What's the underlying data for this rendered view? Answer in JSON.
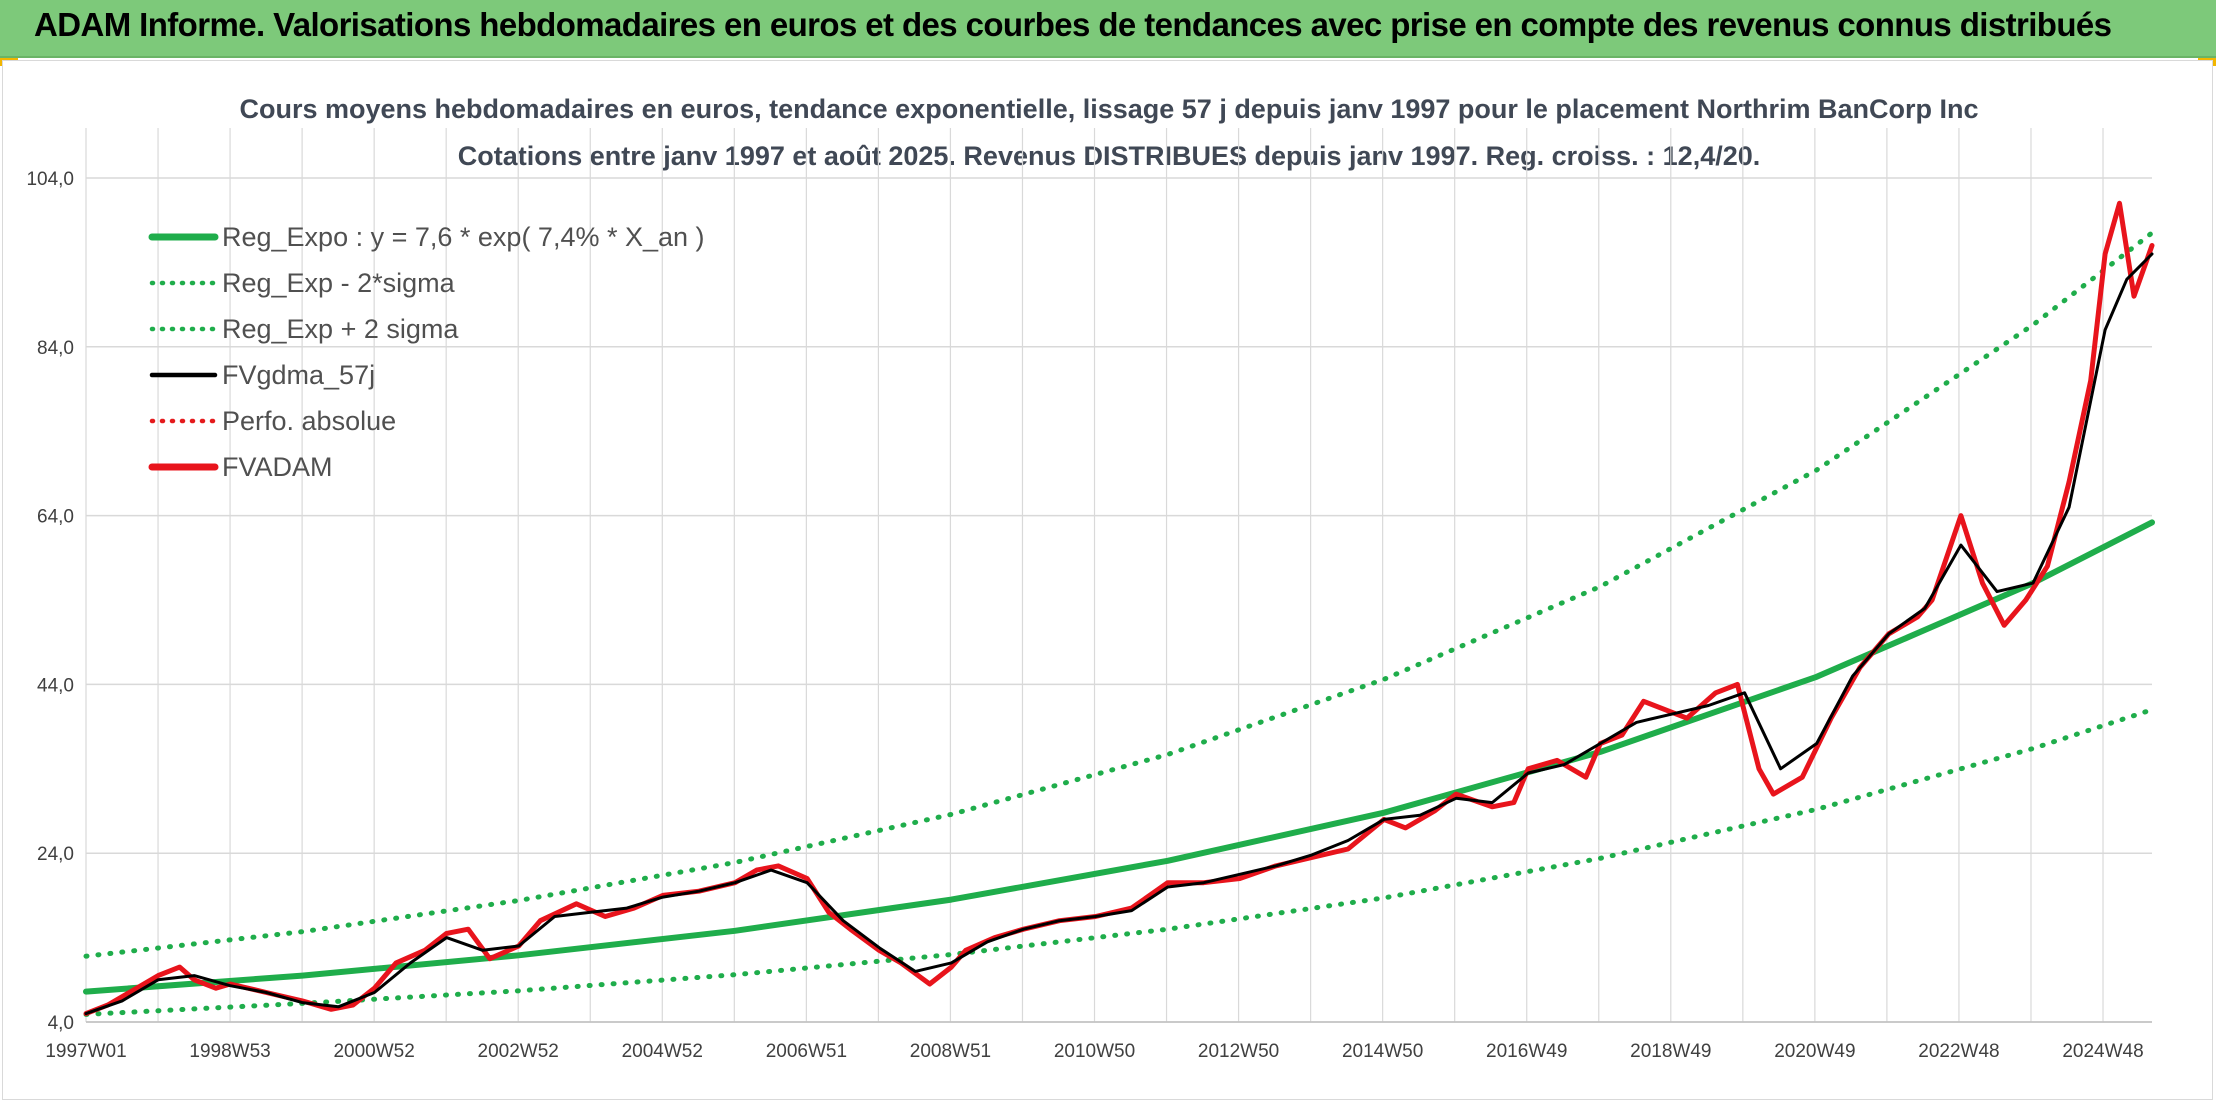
{
  "header": {
    "banner_title": "ADAM Informe. Valorisations hebdomadaires en euros et des courbes de tendances avec prise en compte des revenus connus distribués"
  },
  "colors": {
    "banner_bg": "#7dc97a",
    "reg_expo": "#1fad4b",
    "sigma_lines": "#1fad4b",
    "fvgdma": "#000000",
    "perfo": "#e41a1c",
    "fvadam": "#e8141c",
    "grid": "#d9d9d9"
  },
  "chart_data": {
    "type": "line",
    "title": "Cours moyens hebdomadaires en euros, tendance exponentielle, lissage 57 j depuis janv 1997 pour le placement Northrim BanCorp Inc",
    "subtitle": "Cotations entre janv 1997 et août 2025. Revenus DISTRIBUES depuis janv 1997. Reg. croiss. : 12,4/20.",
    "xlabel": "",
    "ylabel": "",
    "x_ticks": [
      "1997W01",
      "1998W53",
      "2000W52",
      "2002W52",
      "2004W52",
      "2006W51",
      "2008W51",
      "2010W50",
      "2012W50",
      "2014W50",
      "2016W49",
      "2018W49",
      "2020W49",
      "2022W48",
      "2024W48"
    ],
    "x_range": [
      1997.0,
      2025.65
    ],
    "ylim": [
      4.0,
      104.0
    ],
    "y_ticks": [
      "4,0",
      "24,0",
      "44,0",
      "64,0",
      "84,0",
      "104,0"
    ],
    "grid": true,
    "legend_position": "top-left",
    "legend": [
      {
        "label": "Reg_Expo : y = 7,6 * exp( 7,4% *  X_an )",
        "style": "solid-thick",
        "color": "#1fad4b"
      },
      {
        "label": "Reg_Exp - 2*sigma",
        "style": "dotted",
        "color": "#1fad4b"
      },
      {
        "label": "Reg_Exp + 2 sigma",
        "style": "dotted",
        "color": "#1fad4b"
      },
      {
        "label": "FVgdma_57j",
        "style": "solid",
        "color": "#000000"
      },
      {
        "label": "Perfo. absolue",
        "style": "dotted",
        "color": "#e41a1c"
      },
      {
        "label": "FVADAM",
        "style": "solid-thick",
        "color": "#e8141c"
      }
    ],
    "series": [
      {
        "name": "Reg_Expo : y = 7,6 * exp( 7,4% *  X_an )",
        "x": [
          1997.0,
          2000.0,
          2003.0,
          2006.0,
          2009.0,
          2012.0,
          2015.0,
          2018.0,
          2021.0,
          2024.0,
          2025.65
        ],
        "y": [
          7.6,
          9.5,
          11.9,
          14.8,
          18.5,
          23.1,
          28.8,
          36.0,
          44.9,
          56.0,
          63.2
        ]
      },
      {
        "name": "Reg_Exp - 2*sigma",
        "x": [
          1997.0,
          2000.0,
          2003.0,
          2006.0,
          2009.0,
          2012.0,
          2015.0,
          2018.0,
          2021.0,
          2024.0,
          2025.65
        ],
        "y": [
          4.9,
          6.2,
          7.7,
          9.6,
          12.0,
          15.0,
          18.7,
          23.4,
          29.2,
          36.4,
          41.0
        ]
      },
      {
        "name": "Reg_Exp + 2 sigma",
        "x": [
          1997.0,
          2000.0,
          2003.0,
          2006.0,
          2009.0,
          2012.0,
          2015.0,
          2018.0,
          2021.0,
          2024.0,
          2025.65
        ],
        "y": [
          11.8,
          14.7,
          18.4,
          22.9,
          28.6,
          35.7,
          44.6,
          55.6,
          69.4,
          86.6,
          97.5
        ]
      },
      {
        "name": "FVADAM",
        "x": [
          1997.0,
          1997.3,
          1997.6,
          1998.0,
          1998.3,
          1998.5,
          1998.8,
          1999.0,
          1999.5,
          2000.0,
          2000.4,
          2000.7,
          2001.0,
          2001.3,
          2001.7,
          2002.0,
          2002.3,
          2002.6,
          2003.0,
          2003.3,
          2003.8,
          2004.2,
          2004.6,
          2005.0,
          2005.5,
          2006.0,
          2006.3,
          2006.6,
          2007.0,
          2007.3,
          2007.6,
          2008.0,
          2008.3,
          2008.7,
          2009.0,
          2009.2,
          2009.6,
          2010.0,
          2010.5,
          2011.0,
          2011.5,
          2012.0,
          2012.5,
          2013.0,
          2013.5,
          2014.0,
          2014.5,
          2015.0,
          2015.3,
          2015.7,
          2016.0,
          2016.5,
          2016.8,
          2017.0,
          2017.4,
          2017.8,
          2018.0,
          2018.3,
          2018.6,
          2018.9,
          2019.2,
          2019.6,
          2019.9,
          2020.2,
          2020.4,
          2020.8,
          2021.2,
          2021.6,
          2022.0,
          2022.4,
          2022.6,
          2022.8,
          2023.0,
          2023.3,
          2023.6,
          2023.9,
          2024.2,
          2024.5,
          2024.8,
          2025.0,
          2025.2,
          2025.4,
          2025.65
        ],
        "y": [
          5.0,
          6.0,
          7.5,
          9.5,
          10.5,
          9.0,
          8.0,
          8.5,
          7.5,
          6.5,
          5.5,
          6.0,
          8.0,
          11.0,
          12.5,
          14.5,
          15.0,
          11.5,
          13.0,
          16.0,
          18.0,
          16.5,
          17.5,
          19.0,
          19.5,
          20.5,
          22.0,
          22.5,
          21.0,
          17.0,
          15.0,
          12.5,
          11.0,
          8.5,
          10.5,
          12.5,
          14.0,
          15.0,
          16.0,
          16.5,
          17.5,
          20.5,
          20.5,
          21.0,
          22.5,
          23.5,
          24.5,
          28.0,
          27.0,
          29.0,
          31.0,
          29.5,
          30.0,
          34.0,
          35.0,
          33.0,
          37.0,
          38.0,
          42.0,
          41.0,
          40.0,
          43.0,
          44.0,
          34.0,
          31.0,
          33.0,
          40.0,
          46.0,
          50.0,
          52.0,
          54.0,
          59.0,
          64.0,
          56.0,
          51.0,
          54.0,
          58.0,
          68.0,
          80.0,
          95.0,
          101.0,
          90.0,
          96.0
        ]
      },
      {
        "name": "FVgdma_57j",
        "x": [
          1997.0,
          1997.5,
          1998.0,
          1998.5,
          1999.0,
          1999.5,
          2000.0,
          2000.5,
          2001.0,
          2001.5,
          2002.0,
          2002.5,
          2003.0,
          2003.5,
          2004.0,
          2004.5,
          2005.0,
          2005.5,
          2006.0,
          2006.5,
          2007.0,
          2007.5,
          2008.0,
          2008.5,
          2009.0,
          2009.5,
          2010.0,
          2010.5,
          2011.0,
          2011.5,
          2012.0,
          2012.5,
          2013.0,
          2013.5,
          2014.0,
          2014.5,
          2015.0,
          2015.5,
          2016.0,
          2016.5,
          2017.0,
          2017.5,
          2018.0,
          2018.5,
          2019.0,
          2019.5,
          2020.0,
          2020.5,
          2021.0,
          2021.5,
          2022.0,
          2022.5,
          2023.0,
          2023.5,
          2024.0,
          2024.5,
          2025.0,
          2025.3,
          2025.65
        ],
        "y": [
          5.0,
          6.5,
          9.0,
          9.5,
          8.3,
          7.5,
          6.3,
          5.8,
          7.5,
          11.0,
          14.0,
          12.5,
          13.0,
          16.5,
          17.0,
          17.5,
          18.8,
          19.5,
          20.5,
          22.0,
          20.5,
          16.0,
          12.8,
          10.0,
          11.0,
          13.5,
          15.0,
          16.0,
          16.5,
          17.2,
          20.0,
          20.5,
          21.5,
          22.5,
          23.8,
          25.5,
          28.0,
          28.5,
          30.5,
          30.0,
          33.5,
          34.5,
          37.0,
          39.5,
          40.5,
          41.5,
          43.0,
          34.0,
          37.0,
          45.0,
          50.0,
          53.0,
          60.5,
          55.0,
          56.0,
          65.0,
          86.0,
          92.0,
          95.0
        ]
      }
    ]
  }
}
